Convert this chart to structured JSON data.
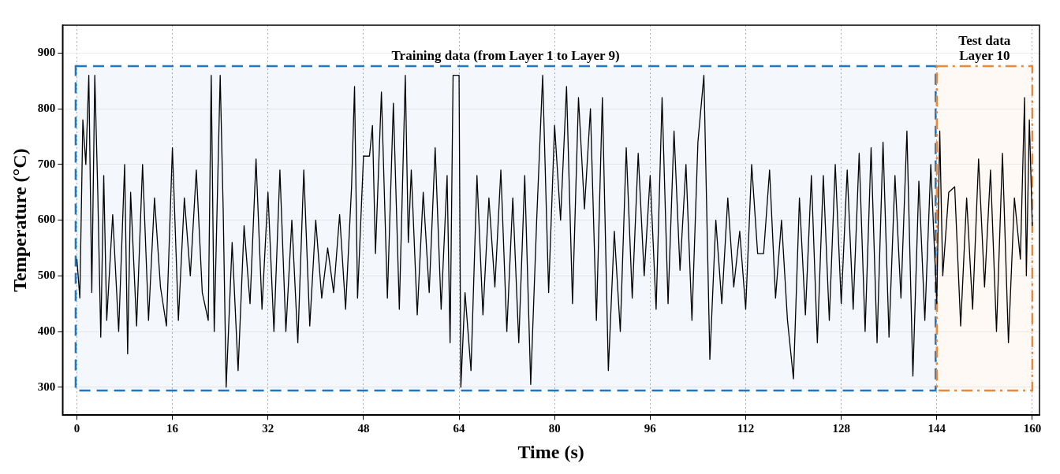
{
  "chart_data": {
    "type": "line",
    "xlabel": "Time (s)",
    "ylabel": "Temperature (°C)",
    "xlim": [
      -2.4,
      161.2
    ],
    "ylim": [
      250,
      950
    ],
    "xticks": [
      0,
      16,
      32,
      48,
      64,
      80,
      96,
      112,
      128,
      144,
      160
    ],
    "yticks": [
      300,
      400,
      500,
      600,
      700,
      800,
      900
    ],
    "grid": true,
    "line_style": "solid",
    "marker": "none",
    "bands": [
      {
        "axis": "x",
        "from": -0.2,
        "to": 143.8,
        "label": "Training data (from Layer 1 to Layer 9)",
        "color": "#1f77c4"
      },
      {
        "axis": "x",
        "from": 144,
        "to": 160,
        "label": "Test data Layer 10",
        "color": "#e8883a"
      }
    ],
    "series": [
      {
        "color": "#000000",
        "x": [
          0,
          0.5,
          1,
          1.5,
          2,
          2.5,
          3,
          3.5,
          4,
          4.5,
          5,
          6,
          7,
          8,
          8.5,
          9,
          10,
          11,
          12,
          13,
          14,
          15,
          16,
          17,
          18,
          19,
          20,
          21,
          22,
          22.5,
          23,
          24,
          24.5,
          25,
          26,
          27,
          28,
          29,
          30,
          31,
          32,
          33,
          34,
          35,
          36,
          37,
          38,
          39,
          40,
          41,
          42,
          43,
          44,
          45,
          46,
          46.5,
          47,
          48,
          49,
          49.5,
          50,
          51,
          52,
          53,
          54,
          55,
          55.5,
          56,
          57,
          58,
          59,
          60,
          61,
          62,
          62.5,
          63,
          64,
          64.3,
          65,
          66,
          67,
          68,
          69,
          70,
          71,
          72,
          73,
          74,
          75,
          76,
          77,
          78,
          79,
          80,
          81,
          82,
          83,
          84,
          85,
          86,
          87,
          88,
          89,
          90,
          91,
          92,
          93,
          94,
          95,
          96,
          97,
          98,
          99,
          100,
          101,
          102,
          103,
          104,
          105,
          106,
          107,
          108,
          109,
          110,
          111,
          112,
          113,
          114,
          115,
          116,
          117,
          118,
          119,
          120,
          121,
          122,
          123,
          124,
          125,
          126,
          127,
          128,
          129,
          130,
          131,
          132,
          133,
          134,
          135,
          136,
          137,
          138,
          139,
          140,
          141,
          142,
          143,
          144,
          144.5,
          145,
          146,
          147,
          148,
          149,
          150,
          151,
          152,
          153,
          154,
          155,
          156,
          157,
          158,
          158.7,
          159,
          159.5,
          160
        ],
        "values": [
          530,
          460,
          780,
          700,
          860,
          470,
          860,
          650,
          390,
          680,
          420,
          610,
          400,
          700,
          360,
          650,
          410,
          700,
          420,
          640,
          480,
          410,
          730,
          420,
          640,
          500,
          690,
          470,
          420,
          860,
          400,
          860,
          620,
          300,
          560,
          330,
          590,
          450,
          710,
          440,
          650,
          400,
          690,
          400,
          600,
          380,
          690,
          410,
          600,
          460,
          550,
          470,
          610,
          440,
          660,
          840,
          460,
          715,
          715,
          770,
          540,
          830,
          460,
          810,
          440,
          860,
          560,
          690,
          430,
          650,
          470,
          730,
          440,
          680,
          380,
          860,
          860,
          300,
          470,
          330,
          680,
          430,
          640,
          480,
          690,
          400,
          640,
          380,
          680,
          305,
          600,
          860,
          470,
          770,
          600,
          840,
          450,
          820,
          620,
          800,
          420,
          820,
          330,
          580,
          400,
          730,
          460,
          720,
          500,
          680,
          440,
          820,
          450,
          760,
          510,
          700,
          420,
          740,
          860,
          350,
          600,
          450,
          640,
          480,
          580,
          440,
          700,
          540,
          540,
          690,
          460,
          600,
          420,
          315,
          640,
          430,
          680,
          380,
          680,
          420,
          700,
          450,
          690,
          440,
          720,
          400,
          730,
          380,
          740,
          390,
          680,
          460,
          760,
          320,
          670,
          420,
          700,
          450,
          760,
          500,
          650,
          660,
          410,
          640,
          440,
          710,
          480,
          690,
          400,
          720,
          380,
          640,
          530,
          820,
          500,
          780,
          590
        ]
      }
    ]
  }
}
